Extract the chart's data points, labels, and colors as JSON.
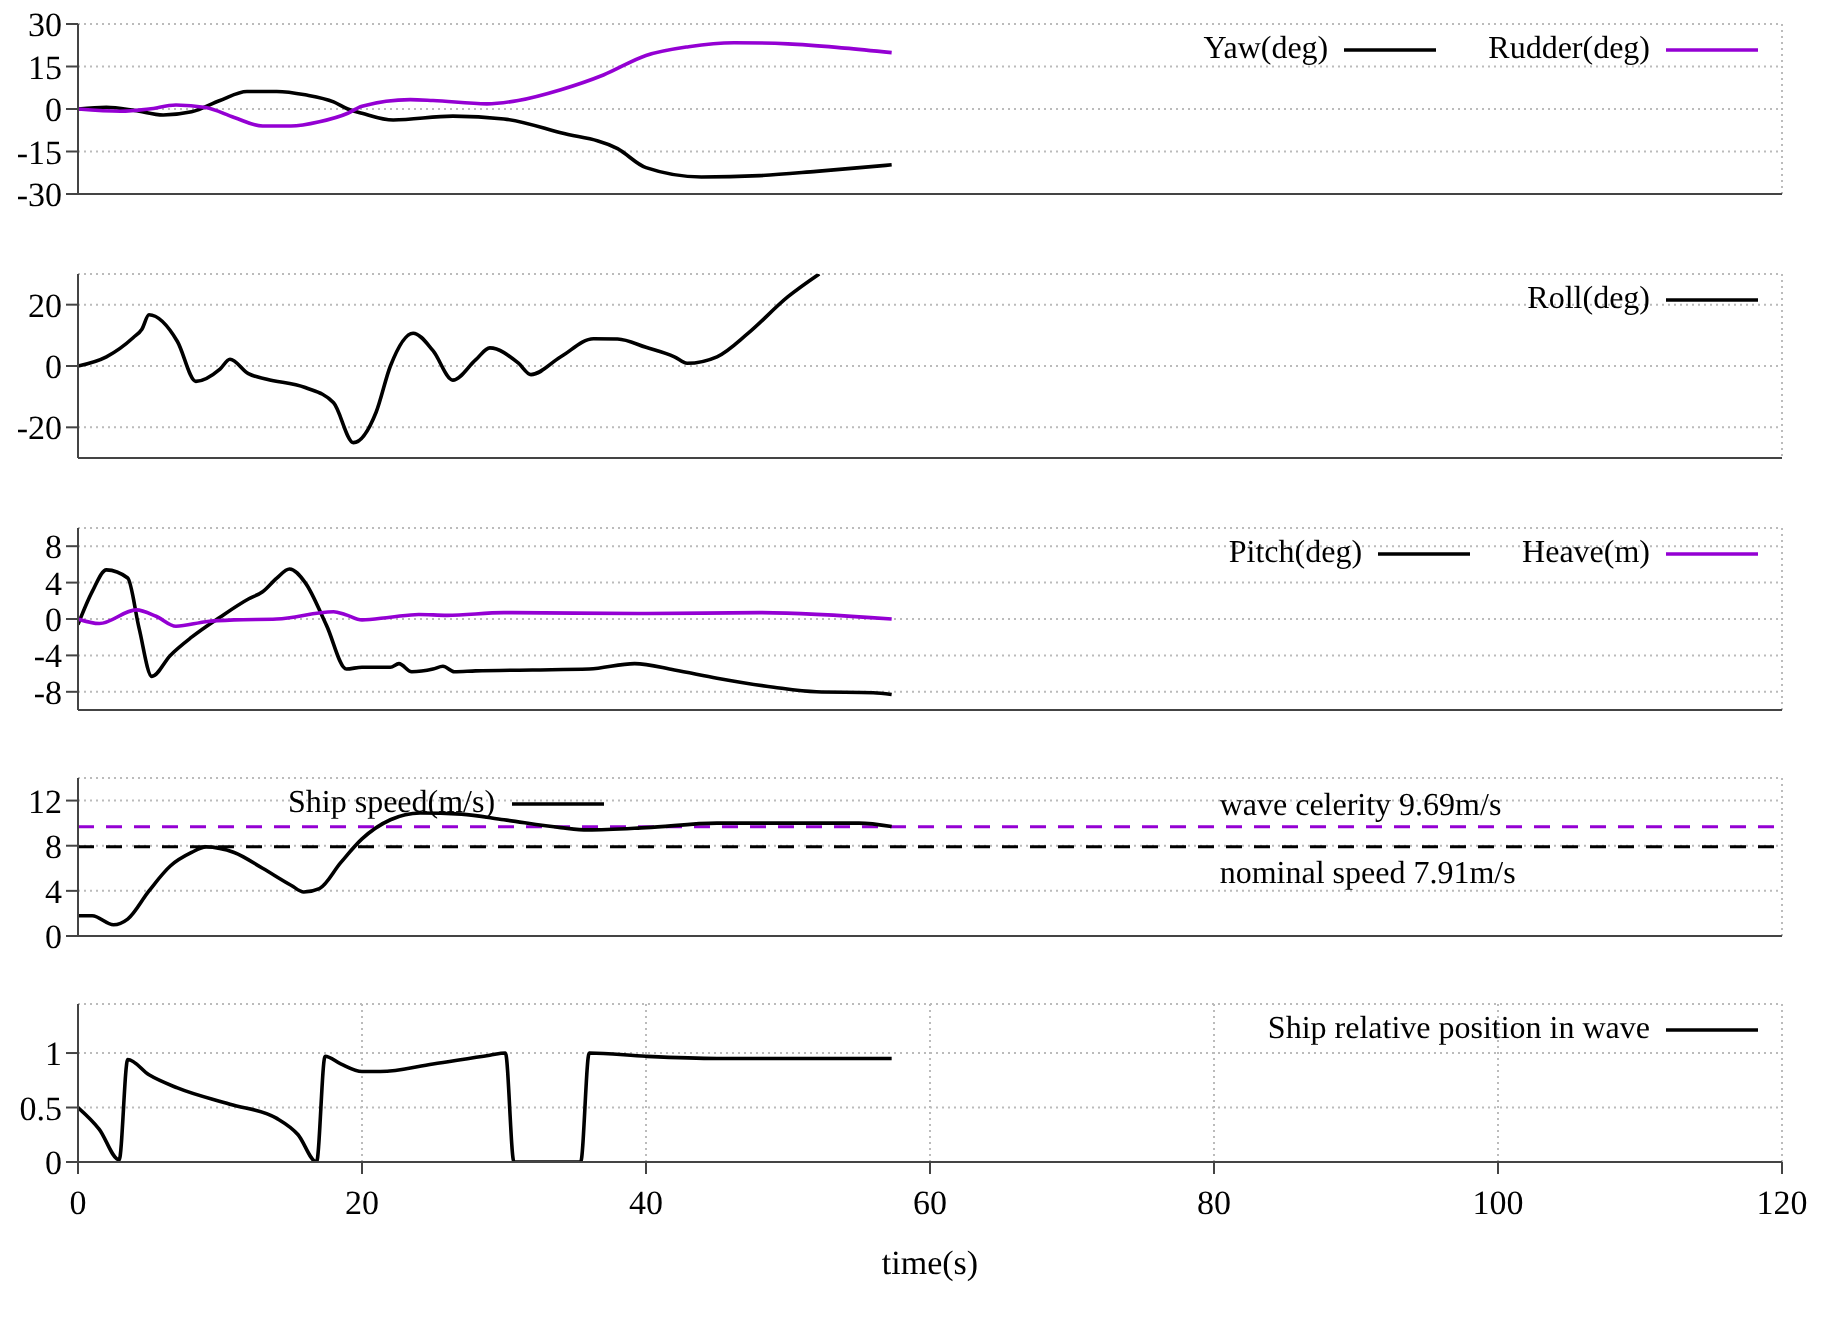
{
  "chart_data": [
    {
      "type": "line",
      "xlim": [
        0,
        120
      ],
      "xticks": [
        0,
        20,
        40,
        60,
        80,
        100,
        120
      ],
      "ylim": [
        -30,
        30
      ],
      "yticks": [
        -30,
        -15,
        0,
        15,
        30
      ],
      "grid": true,
      "legend": "top right",
      "tick_labels": "y",
      "series": [
        {
          "name": "Yaw(deg)",
          "color": "#000000",
          "x": [
            0,
            2,
            4,
            6,
            8,
            10,
            11.9,
            14,
            16,
            18,
            19,
            20,
            22.2,
            26.4,
            30,
            34,
            38,
            40,
            43.9,
            48,
            52,
            57.3
          ],
          "values": [
            0,
            0.6,
            -0.5,
            -2.1,
            -1,
            3,
            6.2,
            6.2,
            5,
            2.5,
            0,
            -1.5,
            -3.9,
            -2.5,
            -3.5,
            -8.4,
            -14,
            -20.7,
            -24,
            -23.5,
            -22,
            -19.7
          ]
        },
        {
          "name": "Rudder(deg)",
          "color": "#9400d3",
          "x": [
            0,
            3,
            5,
            6.9,
            9,
            11,
            13,
            15,
            17,
            19,
            20,
            23.4,
            25,
            28.8,
            31,
            34,
            37,
            40,
            43,
            46.2,
            50,
            54,
            57.3
          ],
          "values": [
            0,
            -0.8,
            0,
            1.4,
            0.5,
            -3,
            -6,
            -6,
            -4.5,
            -1.5,
            1,
            3.3,
            3,
            1.8,
            3,
            6.8,
            12,
            18.9,
            22,
            23.4,
            23,
            21.5,
            19.9
          ]
        }
      ]
    },
    {
      "type": "line",
      "xlim": [
        0,
        120
      ],
      "xticks": [
        0,
        20,
        40,
        60,
        80,
        100,
        120
      ],
      "ylim": [
        -30,
        30
      ],
      "yticks": [
        -20,
        0,
        20
      ],
      "grid": true,
      "legend": "top right",
      "tick_labels": "y",
      "series": [
        {
          "name": "Roll(deg)",
          "color": "#000000",
          "x": [
            0,
            2,
            3.9,
            4.5,
            5,
            7,
            8.3,
            10,
            10.7,
            12,
            13.3,
            16,
            18,
            19.4,
            21,
            22,
            23.6,
            25,
            26.4,
            28,
            29,
            31,
            31.9,
            34,
            36.3,
            38,
            40,
            42,
            42.9,
            45,
            47.2,
            50,
            52.2
          ],
          "values": [
            0,
            3,
            9.3,
            12,
            16.7,
            8,
            -5,
            -1,
            2.2,
            -2.5,
            -4.3,
            -7,
            -12,
            -25,
            -15,
            0,
            10.7,
            5,
            -4.6,
            2,
            5.9,
            1,
            -2.8,
            3,
            8.9,
            8.8,
            6.1,
            3,
            0.9,
            3,
            10.7,
            22.6,
            30
          ]
        }
      ]
    },
    {
      "type": "line",
      "xlim": [
        0,
        120
      ],
      "xticks": [
        0,
        20,
        40,
        60,
        80,
        100,
        120
      ],
      "ylim": [
        -10,
        10
      ],
      "yticks": [
        -8,
        -4,
        0,
        4,
        8
      ],
      "grid": true,
      "legend": "top right",
      "tick_labels": "y",
      "series": [
        {
          "name": "Pitch(deg)",
          "color": "#000000",
          "x": [
            0,
            1,
            2,
            3.5,
            4.3,
            5.2,
            6.5,
            8,
            10,
            12,
            13,
            14,
            14.9,
            16,
            17.5,
            18.9,
            20,
            22,
            22.6,
            23.5,
            25,
            25.7,
            26.5,
            28,
            32,
            36,
            39.2,
            42,
            45,
            49,
            52,
            56,
            57.3
          ],
          "values": [
            -0.6,
            3,
            5.4,
            4.5,
            -1,
            -6.3,
            -4,
            -2,
            0.2,
            2.2,
            3,
            4.5,
            5.5,
            4,
            -0.7,
            -5.5,
            -5.3,
            -5.3,
            -4.9,
            -5.8,
            -5.5,
            -5.2,
            -5.8,
            -5.7,
            -5.6,
            -5.5,
            -4.9,
            -5.6,
            -6.5,
            -7.5,
            -8,
            -8.1,
            -8.3
          ]
        },
        {
          "name": "Heave(m)",
          "color": "#9400d3",
          "x": [
            0,
            1.5,
            4.1,
            5.5,
            6.9,
            9,
            11,
            14,
            18,
            18.8,
            20,
            22,
            24,
            26,
            30,
            40,
            48,
            57.3
          ],
          "values": [
            0,
            -0.5,
            1,
            0.3,
            -0.8,
            -0.3,
            -0.1,
            0,
            0.8,
            0.5,
            -0.1,
            0.2,
            0.5,
            0.4,
            0.7,
            0.6,
            0.7,
            0
          ]
        }
      ]
    },
    {
      "type": "line",
      "xlim": [
        0,
        120
      ],
      "xticks": [
        0,
        20,
        40,
        60,
        80,
        100,
        120
      ],
      "ylim": [
        0,
        14
      ],
      "yticks": [
        0,
        4,
        8,
        12
      ],
      "grid": true,
      "legend": "top left",
      "tick_labels": "y",
      "series": [
        {
          "name": "Ship speed(m/s)",
          "color": "#000000",
          "x": [
            0,
            1,
            2.5,
            3.5,
            5,
            6.5,
            8,
            9,
            11,
            13,
            15,
            15.9,
            17,
            18.5,
            20,
            22,
            24.1,
            27,
            30,
            34,
            35.9,
            40,
            45,
            50,
            55,
            57.3
          ],
          "values": [
            1.8,
            1.8,
            1,
            1.5,
            4,
            6.2,
            7.4,
            7.9,
            7.4,
            6,
            4.5,
            3.9,
            4.2,
            6.5,
            8.6,
            10.3,
            10.9,
            10.8,
            10.3,
            9.6,
            9.4,
            9.6,
            10,
            10,
            10,
            9.7
          ]
        }
      ],
      "ref_lines": [
        {
          "axis": "y",
          "value": 9.69,
          "label": "wave celerity 9.69m/s",
          "color": "#9400d3",
          "line_style": "dashed"
        },
        {
          "axis": "y",
          "value": 7.91,
          "label": "nominal speed 7.91m/s",
          "color": "#000000",
          "line_style": "dashed"
        }
      ]
    },
    {
      "type": "line",
      "xlim": [
        0,
        120
      ],
      "xticks": [
        0,
        20,
        40,
        60,
        80,
        100,
        120
      ],
      "ylim": [
        0,
        1.45
      ],
      "yticks": [
        0,
        0.5,
        1
      ],
      "grid": true,
      "legend": "top right",
      "xlabel": "time(s)",
      "series": [
        {
          "name": "Ship relative position in wave",
          "color": "#000000",
          "x": [
            0,
            1.5,
            2.9,
            3.5,
            5,
            7,
            10.7,
            14,
            15.5,
            16.8,
            17.4,
            18.5,
            20,
            21.3,
            25,
            29,
            30.1,
            30.7,
            33,
            35.4,
            36,
            40,
            45,
            57.3
          ],
          "values": [
            0.5,
            0.3,
            0.02,
            0.94,
            0.8,
            0.68,
            0.53,
            0.4,
            0.25,
            0,
            0.97,
            0.9,
            0.83,
            0.83,
            0.9,
            0.98,
            1,
            0,
            0,
            0,
            1,
            0.97,
            0.95,
            0.95
          ]
        }
      ]
    }
  ]
}
